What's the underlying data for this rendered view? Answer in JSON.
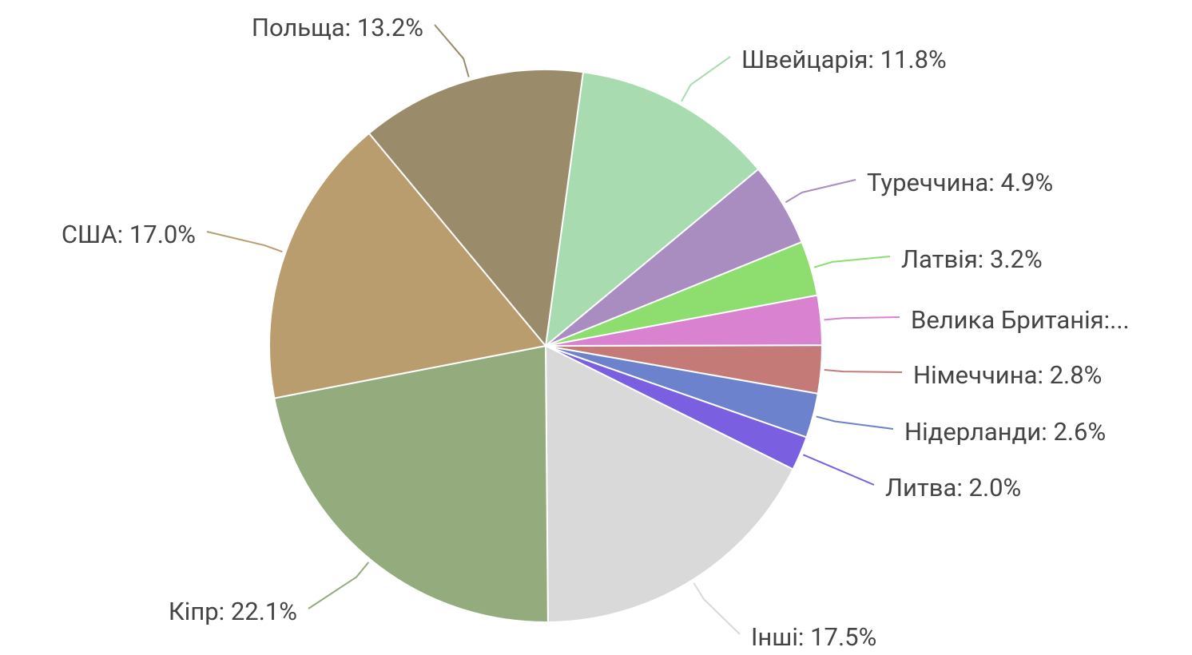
{
  "chart_data": {
    "type": "pie",
    "value_labels": [
      "Швейцарія: 11.8%",
      "Туреччина: 4.9%",
      "Латвія: 3.2%",
      "Велика Британія:...",
      "Німеччина: 2.8%",
      "Нідерланди: 2.6%",
      "Литва: 2.0%",
      "Інші: 17.5%",
      "Кіпр: 22.1%",
      "США: 17.0%",
      "Польща: 13.2%"
    ],
    "values": [
      11.8,
      4.9,
      3.2,
      2.9,
      2.8,
      2.6,
      2.0,
      17.5,
      22.1,
      17.0,
      13.2
    ],
    "colors": [
      "#a8dcb0",
      "#a98cc0",
      "#8ede6f",
      "#d882d0",
      "#c47b78",
      "#6d82cc",
      "#7a60e0",
      "#d9d9d9",
      "#93ab7d",
      "#b99d6e",
      "#9a8c6b"
    ]
  }
}
